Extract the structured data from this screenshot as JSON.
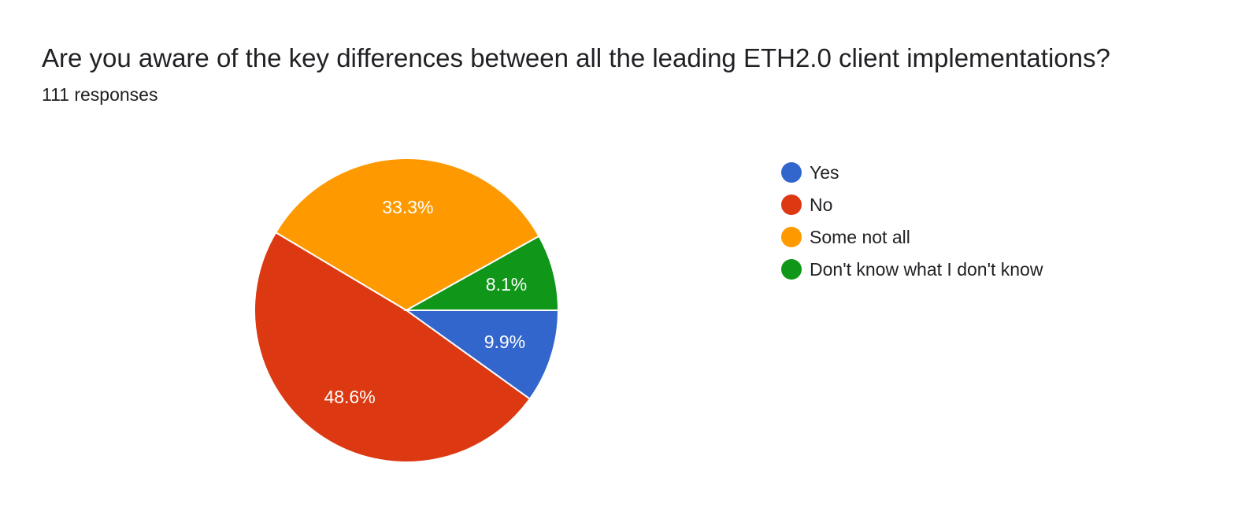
{
  "header": {
    "title": "Are you aware of the key differences between all the leading ETH2.0 client implementations?",
    "responses": "111 responses"
  },
  "chart_data": {
    "type": "pie",
    "title": "Are you aware of the key differences between all the leading ETH2.0 client implementations?",
    "legend_position": "right",
    "slices": [
      {
        "label": "Yes",
        "value": 9.9,
        "display": "9.9%",
        "color": "#3366cc"
      },
      {
        "label": "No",
        "value": 48.6,
        "display": "48.6%",
        "color": "#dc3912"
      },
      {
        "label": "Some not all",
        "value": 33.3,
        "display": "33.3%",
        "color": "#ff9900"
      },
      {
        "label": "Don't know what I don't know",
        "value": 8.1,
        "display": "8.1%",
        "color": "#109618"
      }
    ]
  }
}
